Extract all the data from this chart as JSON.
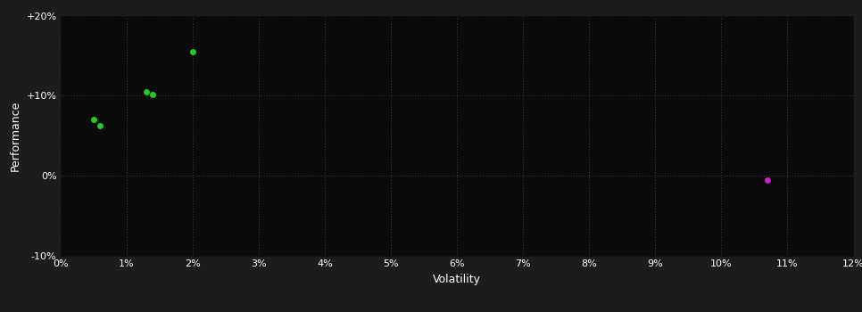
{
  "green_points": [
    [
      0.005,
      0.07
    ],
    [
      0.006,
      0.062
    ],
    [
      0.013,
      0.105
    ],
    [
      0.014,
      0.102
    ],
    [
      0.02,
      0.155
    ]
  ],
  "magenta_points": [
    [
      0.107,
      -0.005
    ]
  ],
  "green_color": "#22cc22",
  "magenta_color": "#cc22cc",
  "bg_color": "#1c1c1c",
  "plot_bg_color": "#0a0a0a",
  "grid_color": "#3a3a3a",
  "text_color": "#ffffff",
  "xlabel": "Volatility",
  "ylabel": "Performance",
  "xlim": [
    0,
    0.12
  ],
  "ylim": [
    -0.1,
    0.2
  ],
  "xticks": [
    0.0,
    0.01,
    0.02,
    0.03,
    0.04,
    0.05,
    0.06,
    0.07,
    0.08,
    0.09,
    0.1,
    0.11,
    0.12
  ],
  "yticks": [
    -0.1,
    0.0,
    0.1,
    0.2
  ],
  "ytick_labels": [
    "-10%",
    "0%",
    "+10%",
    "+20%"
  ],
  "xtick_labels": [
    "0%",
    "1%",
    "2%",
    "3%",
    "4%",
    "5%",
    "6%",
    "7%",
    "8%",
    "9%",
    "10%",
    "11%",
    "12%"
  ],
  "marker_size": 5
}
